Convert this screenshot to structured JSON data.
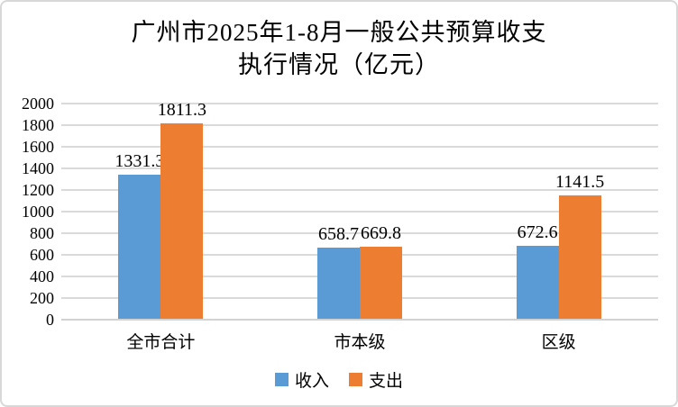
{
  "frame": {
    "background": "#ffffff",
    "border_color": "#d8d8d8"
  },
  "title": {
    "line1": "广州市2025年1-8月一般公共预算收支",
    "line2": "执行情况（亿元）"
  },
  "chart_data": {
    "type": "bar",
    "title": "广州市2025年1-8月一般公共预算收支执行情况（亿元）",
    "categories": [
      "全市合计",
      "市本级",
      "区级"
    ],
    "series": [
      {
        "name": "收入",
        "color": "#5B9BD5",
        "values": [
          1331.3,
          658.7,
          672.6
        ]
      },
      {
        "name": "支出",
        "color": "#ED7D31",
        "values": [
          1811.3,
          669.8,
          1141.5
        ]
      }
    ],
    "data_labels": [
      [
        "1331.3",
        "658.7",
        "672.6"
      ],
      [
        "1811.3",
        "669.8",
        "1141.5"
      ]
    ],
    "ylim": [
      0,
      2000
    ],
    "yticks": [
      0,
      200,
      400,
      600,
      800,
      1000,
      1200,
      1400,
      1600,
      1800,
      2000
    ],
    "grid": true,
    "gridline_color": "#dadada",
    "axis_line_color": "#d2d2d2",
    "legend_position": "bottom",
    "text_color": "#000000"
  }
}
